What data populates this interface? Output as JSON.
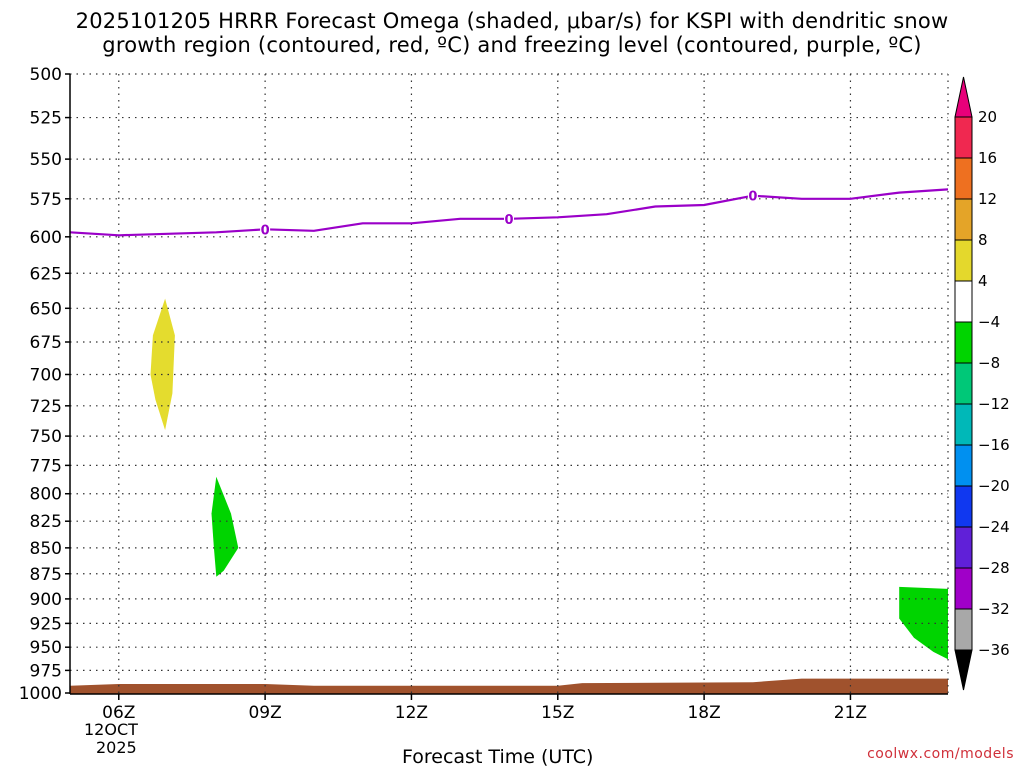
{
  "title_line1": "2025101205 HRRR Forecast Omega (shaded, μbar/s) for KSPI with dendritic snow",
  "title_line2": "growth region (contoured, red, ºC) and freezing level (contoured, purple, ºC)",
  "xlabel": "Forecast Time (UTC)",
  "date_line1": "12OCT",
  "date_line2": "2025",
  "credit": "coolwx.com/models",
  "chart_data": {
    "type": "heatmap",
    "x_ticks": [
      {
        "hour": 6,
        "label": "06Z"
      },
      {
        "hour": 9,
        "label": "09Z"
      },
      {
        "hour": 12,
        "label": "12Z"
      },
      {
        "hour": 15,
        "label": "15Z"
      },
      {
        "hour": 18,
        "label": "18Z"
      },
      {
        "hour": 21,
        "label": "21Z"
      }
    ],
    "xlim": [
      5,
      23
    ],
    "y_ticks": [
      500,
      525,
      550,
      575,
      600,
      625,
      650,
      675,
      700,
      725,
      750,
      775,
      800,
      825,
      850,
      875,
      900,
      925,
      950,
      975,
      1000
    ],
    "ylim": [
      500,
      1000
    ],
    "y_scale": "log-pressure, inverted",
    "grid": true,
    "freezing_level": {
      "color": "#9a00c8",
      "label": "0",
      "points": [
        [
          5,
          597
        ],
        [
          6,
          599
        ],
        [
          7,
          598
        ],
        [
          8,
          597
        ],
        [
          9,
          595
        ],
        [
          10,
          596
        ],
        [
          11,
          591
        ],
        [
          12,
          591
        ],
        [
          13,
          588
        ],
        [
          14,
          588
        ],
        [
          15,
          587
        ],
        [
          16,
          585
        ],
        [
          17,
          580
        ],
        [
          18,
          579
        ],
        [
          19,
          573
        ],
        [
          20,
          575
        ],
        [
          21,
          575
        ],
        [
          22,
          571
        ],
        [
          23,
          569
        ]
      ],
      "label_points": [
        [
          9,
          595
        ],
        [
          14,
          588
        ],
        [
          19,
          573
        ]
      ]
    },
    "omega_regions": [
      {
        "color": "#e4dc2e",
        "points": [
          [
            6.65,
            700
          ],
          [
            6.7,
            670
          ],
          [
            6.95,
            643
          ],
          [
            7.15,
            670
          ],
          [
            7.1,
            715
          ],
          [
            6.95,
            745
          ],
          [
            6.75,
            720
          ]
        ]
      },
      {
        "color": "#00d400",
        "points": [
          [
            7.9,
            818
          ],
          [
            8.0,
            785
          ],
          [
            8.3,
            818
          ],
          [
            8.45,
            850
          ],
          [
            8.15,
            872
          ],
          [
            8.0,
            878
          ],
          [
            7.95,
            850
          ]
        ]
      },
      {
        "color": "#00d400",
        "points": [
          [
            22.0,
            888
          ],
          [
            23.0,
            890
          ],
          [
            23.0,
            963
          ],
          [
            22.7,
            955
          ],
          [
            22.3,
            940
          ],
          [
            22.0,
            920
          ]
        ]
      }
    ],
    "terrain": {
      "color": "#a0522d",
      "points": [
        [
          5,
          992
        ],
        [
          6,
          990
        ],
        [
          9,
          990
        ],
        [
          10,
          992
        ],
        [
          15,
          992
        ],
        [
          15.5,
          989
        ],
        [
          19,
          988
        ],
        [
          20,
          984
        ],
        [
          23,
          984
        ]
      ]
    },
    "colorbar": {
      "labels": [
        "20",
        "16",
        "12",
        "8",
        "4",
        "−4",
        "−8",
        "−12",
        "−16",
        "−20",
        "−24",
        "−28",
        "−32",
        "−36"
      ],
      "top_arrow_color": "#e8007a",
      "bottom_arrow_color": "#000000",
      "colors": [
        "#f02850",
        "#ee7020",
        "#e4a428",
        "#e4d82c",
        "#ffffff",
        "#00d400",
        "#00c878",
        "#00b8b8",
        "#0090f0",
        "#1038f0",
        "#6020d8",
        "#a000c8",
        "#a8a8a8"
      ]
    }
  }
}
